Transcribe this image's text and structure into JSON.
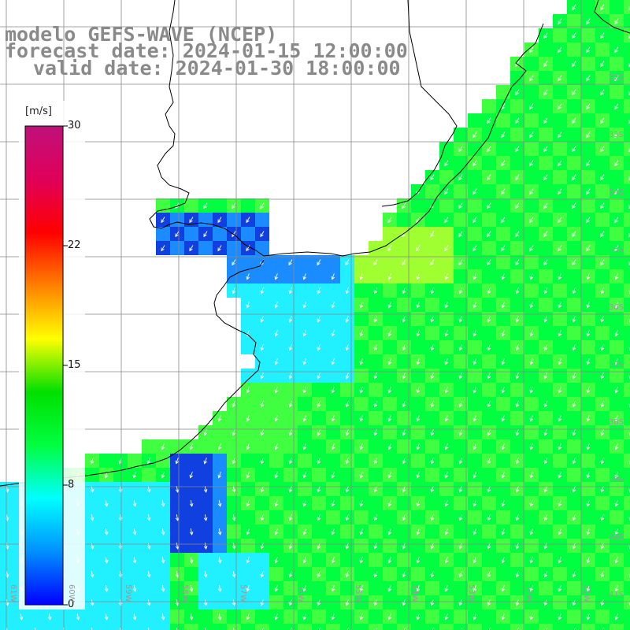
{
  "header": {
    "line1": "modelo GEFS-WAVE (NCEP)",
    "line2": "forecast date: 2024-01-15 12:00:00",
    "line3": "valid date: 2024-01-30 18:00:00"
  },
  "colorbar": {
    "unit": "[m/s]",
    "ticks": [
      "30",
      "22",
      "15",
      "8",
      "0"
    ],
    "colors": [
      "#0000ff",
      "#0090ff",
      "#00ffff",
      "#00ff40",
      "#00e000",
      "#ffff00",
      "#ff8000",
      "#ff0000",
      "#e0005a",
      "#c0107a"
    ]
  },
  "grid": {
    "lon_labels": [
      "61W",
      "60W",
      "59W",
      "58W",
      "57W",
      "56W",
      "55W",
      "54W",
      "53W",
      "52W",
      "51W"
    ],
    "lat_labels": [
      "32S",
      "33S",
      "34S",
      "35S",
      "36S",
      "37S",
      "38S",
      "39S",
      "40S",
      "41S"
    ]
  },
  "field": {
    "variable": "wind speed",
    "palette": {
      "dark_blue": "#1040e0",
      "blue": "#1a8cff",
      "cyan": "#20f0ff",
      "green": "#00ff40",
      "light_green": "#40ff40",
      "yellow_green": "#a0ff30",
      "land": "#ffffff",
      "coast": "#000000",
      "grid_line": "#888888",
      "arrow": "#ffffff"
    }
  }
}
